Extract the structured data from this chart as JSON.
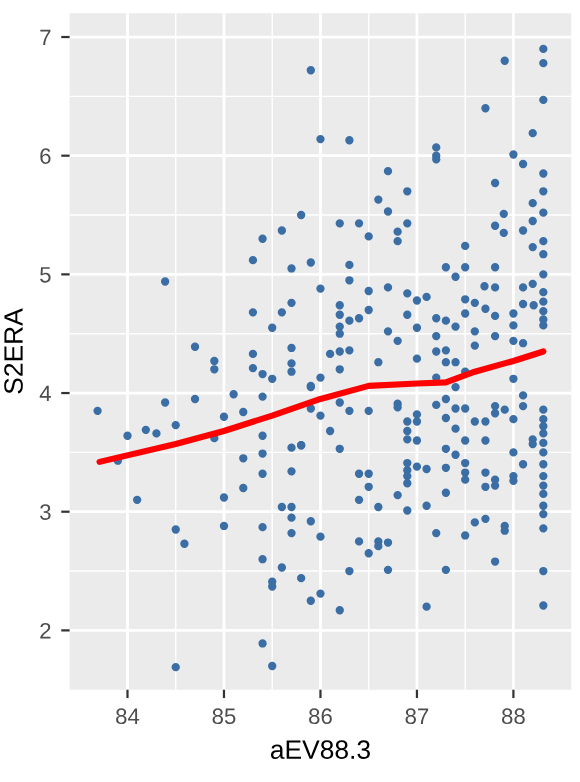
{
  "chart_data": {
    "type": "scatter",
    "xlabel": "aEV88.3",
    "ylabel": "S2ERA",
    "xlim": [
      83.4,
      88.6
    ],
    "ylim": [
      1.5,
      7.2
    ],
    "xticks": [
      84,
      85,
      86,
      87,
      88
    ],
    "yticks": [
      2,
      3,
      4,
      5,
      6,
      7
    ],
    "grid": true,
    "series": [
      {
        "marker": "circle",
        "color": "#3a6ea5",
        "x": [
          83.69,
          84.0,
          83.9,
          84.1,
          84.19,
          84.3,
          84.39,
          84.5,
          84.5,
          84.59,
          84.5,
          84.7,
          84.7,
          84.9,
          84.9,
          84.9,
          85.0,
          85.0,
          85.0,
          85.1,
          85.2,
          85.2,
          85.2,
          85.3,
          85.3,
          85.4,
          85.4,
          85.4,
          85.4,
          85.4,
          85.4,
          85.4,
          85.4,
          85.5,
          85.5,
          85.5,
          85.5,
          85.6,
          85.6,
          85.7,
          85.7,
          85.7,
          85.7,
          85.7,
          85.7,
          85.7,
          85.7,
          85.8,
          85.8,
          85.9,
          85.9,
          85.9,
          85.9,
          86.0,
          86.0,
          85.9,
          86.0,
          85.8,
          85.6,
          85.4,
          85.3,
          85.9,
          85.7,
          84.39,
          86.0,
          85.3,
          85.6,
          85.7,
          85.5,
          86.3,
          87.91,
          88.31,
          88.31,
          88.31,
          87.71,
          88.2,
          87.2,
          87.2,
          87.2,
          88.0,
          88.1,
          86.7,
          88.31,
          88.31,
          87.81,
          86.9,
          86.6,
          86.7,
          87.9,
          88.2,
          88.31,
          86.2,
          86.4,
          86.9,
          87.81,
          88.1,
          88.2,
          86.5,
          86.8,
          86.8,
          87.9,
          87.5,
          88.31,
          88.31,
          88.2,
          86.3,
          87.3,
          87.5,
          87.81,
          87.4,
          86.3,
          88.31,
          86.5,
          86.7,
          87.7,
          87.81,
          88.1,
          88.2,
          86.2,
          86.2,
          86.5,
          86.9,
          87.0,
          87.1,
          86.9,
          87.5,
          87.6,
          87.71,
          87.81,
          88.0,
          88.1,
          88.21,
          88.31,
          88.31,
          88.31,
          88.31,
          88.31,
          86.4,
          86.3,
          86.2,
          86.2,
          86.7,
          86.8,
          87.0,
          87.2,
          87.3,
          87.4,
          87.5,
          87.2,
          87.6,
          87.81,
          88.0,
          88.0,
          88.1,
          86.1,
          86.2,
          86.3,
          86.0,
          86.2,
          85.9,
          86.6,
          87.0,
          87.2,
          87.3,
          87.3,
          87.2,
          87.4,
          87.5,
          87.4,
          87.6,
          88.0,
          88.1,
          88.1,
          86.0,
          86.1,
          86.2,
          86.2,
          86.3,
          86.5,
          86.8,
          86.8,
          86.9,
          87.0,
          87.0,
          86.9,
          86.9,
          87.0,
          87.2,
          87.3,
          87.3,
          87.4,
          87.5,
          87.4,
          87.3,
          87.5,
          87.4,
          87.6,
          87.71,
          87.81,
          87.81,
          88.0,
          87.71,
          87.91,
          88.2,
          88.2,
          88.0,
          88.1,
          88.31,
          88.31,
          88.31,
          88.31,
          88.31,
          88.31,
          88.31,
          88.31,
          88.31,
          88.31,
          88.31,
          88.31,
          88.31,
          88.31,
          88.31,
          85.8,
          86.4,
          86.5,
          86.5,
          86.4,
          86.6,
          86.8,
          86.9,
          86.9,
          86.9,
          86.9,
          87.0,
          87.1,
          86.9,
          87.1,
          87.3,
          87.3,
          87.5,
          87.5,
          87.5,
          87.71,
          87.71,
          87.81,
          87.81,
          88.0,
          88.0,
          87.6,
          87.71,
          87.5,
          87.2,
          87.91,
          87.91,
          86.4,
          86.5,
          86.6,
          86.6,
          86.7,
          86.3,
          86.7,
          87.3,
          87.81,
          86.2,
          87.1
        ],
        "values": [
          3.85,
          3.64,
          3.43,
          3.1,
          3.69,
          3.66,
          3.92,
          3.73,
          2.85,
          2.73,
          1.69,
          4.39,
          3.95,
          4.27,
          4.2,
          3.62,
          3.8,
          3.12,
          2.88,
          3.99,
          3.84,
          3.45,
          3.2,
          4.33,
          4.21,
          4.16,
          3.97,
          3.64,
          3.49,
          3.32,
          2.87,
          2.6,
          1.89,
          4.12,
          2.41,
          2.37,
          1.7,
          3.04,
          2.53,
          4.38,
          4.25,
          4.18,
          3.54,
          3.34,
          3.04,
          2.95,
          2.82,
          3.56,
          2.44,
          2.92,
          2.25,
          4.06,
          3.87,
          2.79,
          2.31,
          6.72,
          6.14,
          5.5,
          5.37,
          5.3,
          5.12,
          5.1,
          5.05,
          4.94,
          4.88,
          4.68,
          4.68,
          4.76,
          4.55,
          6.13,
          6.8,
          6.9,
          6.78,
          6.47,
          6.4,
          6.19,
          6.07,
          6.0,
          5.97,
          6.01,
          5.93,
          5.87,
          5.85,
          5.7,
          5.77,
          5.7,
          5.63,
          5.53,
          5.51,
          5.6,
          5.52,
          5.43,
          5.43,
          5.43,
          5.41,
          5.37,
          5.45,
          5.32,
          5.36,
          5.28,
          5.35,
          5.24,
          5.28,
          5.17,
          5.23,
          5.08,
          5.06,
          5.06,
          5.06,
          4.98,
          4.95,
          5.0,
          4.86,
          4.89,
          4.9,
          4.89,
          4.89,
          4.92,
          4.74,
          4.66,
          4.7,
          4.84,
          4.78,
          4.81,
          4.66,
          4.79,
          4.76,
          4.71,
          4.65,
          4.67,
          4.75,
          4.74,
          4.85,
          4.77,
          4.69,
          4.62,
          4.57,
          4.63,
          4.61,
          4.56,
          4.5,
          4.52,
          4.44,
          4.55,
          4.63,
          4.61,
          4.56,
          4.67,
          4.48,
          4.52,
          4.48,
          4.57,
          4.44,
          4.42,
          4.33,
          4.35,
          4.36,
          4.13,
          4.2,
          4.05,
          4.26,
          4.29,
          4.35,
          4.36,
          4.26,
          4.13,
          4.26,
          4.18,
          4.05,
          4.4,
          4.12,
          3.98,
          3.89,
          3.81,
          3.68,
          3.92,
          3.53,
          3.85,
          3.85,
          3.91,
          3.88,
          3.76,
          3.82,
          3.76,
          3.68,
          3.61,
          3.6,
          3.9,
          3.95,
          3.79,
          3.87,
          3.87,
          3.7,
          3.53,
          3.6,
          3.48,
          3.76,
          3.76,
          3.89,
          3.83,
          3.78,
          3.6,
          3.86,
          3.61,
          3.57,
          3.5,
          3.4,
          3.86,
          3.78,
          3.72,
          3.66,
          3.58,
          3.5,
          3.4,
          3.3,
          3.22,
          3.15,
          3.05,
          2.98,
          2.86,
          2.5,
          2.21,
          3.56,
          3.32,
          3.32,
          3.21,
          3.1,
          3.04,
          3.14,
          3.41,
          3.35,
          3.3,
          3.24,
          3.38,
          3.36,
          3.01,
          3.05,
          3.37,
          3.16,
          3.41,
          3.33,
          3.27,
          3.33,
          3.21,
          3.27,
          3.22,
          3.3,
          3.26,
          2.91,
          2.94,
          2.8,
          2.82,
          2.88,
          2.84,
          2.75,
          2.65,
          2.75,
          2.71,
          2.74,
          2.5,
          2.51,
          2.51,
          2.58,
          2.17,
          2.2
        ]
      },
      {
        "type": "line",
        "marker": "none",
        "color": "#ff0000",
        "x": [
          83.71,
          84.5,
          85.0,
          85.5,
          86.0,
          86.5,
          87.0,
          87.3,
          87.6,
          88.0,
          88.31
        ],
        "values": [
          3.42,
          3.57,
          3.68,
          3.81,
          3.95,
          4.06,
          4.08,
          4.09,
          4.18,
          4.27,
          4.35
        ]
      }
    ]
  }
}
